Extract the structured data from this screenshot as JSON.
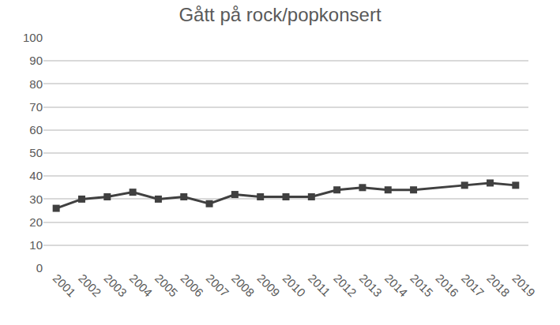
{
  "chart_data": {
    "type": "line",
    "title": "Gått på rock/popkonsert",
    "categories": [
      "2001",
      "2002",
      "2003",
      "2004",
      "2005",
      "2006",
      "2007",
      "2008",
      "2009",
      "2010",
      "2011",
      "2012",
      "2013",
      "2014",
      "2015",
      "2016",
      "2017",
      "2018",
      "2019"
    ],
    "values": [
      26,
      30,
      31,
      33,
      30,
      31,
      28,
      32,
      31,
      31,
      31,
      34,
      35,
      34,
      34,
      null,
      36,
      37,
      36
    ],
    "color": "#404040",
    "marker": "square",
    "line_style": "solid",
    "ylim": [
      0,
      100
    ],
    "yticks": [
      0,
      10,
      20,
      30,
      40,
      50,
      60,
      70,
      80,
      90,
      100
    ],
    "grid": true
  }
}
